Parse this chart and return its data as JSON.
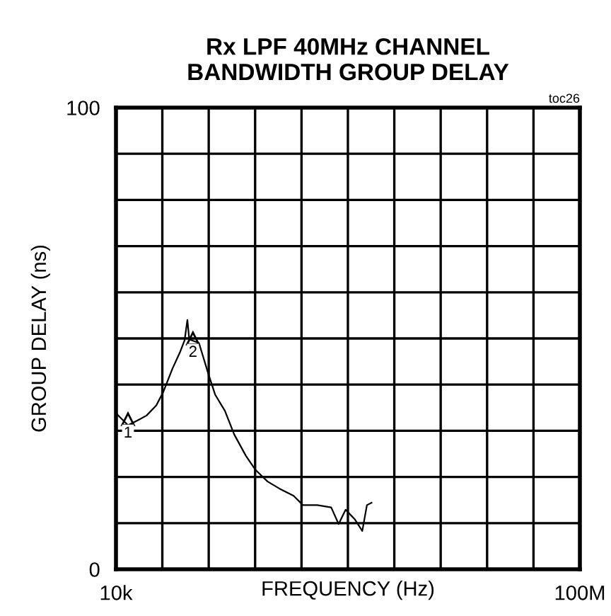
{
  "chart_data": {
    "type": "line",
    "title": "Rx LPF 40MHz CHANNEL\nBANDWIDTH GROUP DELAY",
    "xlabel": "FREQUENCY (Hz)",
    "ylabel": "GROUP DELAY (ns)",
    "annotations": [
      "toc26",
      {
        "text": "1",
        "x": 2600000,
        "y": 31
      },
      {
        "text": "2",
        "x": 16600000,
        "y": 48.5
      }
    ],
    "x": [
      300000,
      2600000,
      4600000,
      6600000,
      8700000,
      10200000,
      12200000,
      13800000,
      14800000,
      15400000,
      15800000,
      17900000,
      19900000,
      21400000,
      23500000,
      25500000,
      28000000,
      30100000,
      32700000,
      35200000,
      38300000,
      40300000,
      43400000,
      46400000,
      48000000,
      49500000,
      51500000,
      53100000,
      54100000,
      55100000
    ],
    "series": [
      {
        "color": "#000000",
        "values": [
          33.5,
          31.2,
          32.2,
          33.3,
          35.5,
          38.4,
          43.5,
          47,
          49.6,
          54,
          49.8,
          49,
          42.4,
          37.8,
          34.3,
          29.2,
          24.6,
          21.5,
          19,
          17.5,
          15.9,
          13.9,
          13.9,
          13.4,
          9.8,
          12.9,
          10.8,
          8.3,
          13.9,
          14.4
        ]
      }
    ],
    "xlim": [
      10000,
      100000000
    ],
    "ylim": [
      0,
      100
    ],
    "xticks": [
      {
        "value": 10000,
        "label": "10k"
      },
      {
        "value": 10000000,
        "label": null
      },
      {
        "value": 20000000,
        "label": null
      },
      {
        "value": 30000000,
        "label": null
      },
      {
        "value": 40000000,
        "label": null
      },
      {
        "value": 50000000,
        "label": null
      },
      {
        "value": 60000000,
        "label": null
      },
      {
        "value": 70000000,
        "label": null
      },
      {
        "value": 80000000,
        "label": null
      },
      {
        "value": 90000000,
        "label": null
      },
      {
        "value": 100000000,
        "label": "100M"
      }
    ],
    "yticks": [
      0,
      {
        "value": 10,
        "label": null
      },
      {
        "value": 20,
        "label": null
      },
      {
        "value": 30,
        "label": null
      },
      {
        "value": 40,
        "label": null
      },
      {
        "value": 50,
        "label": null
      },
      {
        "value": 60,
        "label": null
      },
      {
        "value": 70,
        "label": null
      },
      {
        "value": 80,
        "label": null
      },
      {
        "value": 90,
        "label": null
      },
      100
    ],
    "grid": true,
    "marker": "none",
    "line_style": "solid"
  }
}
